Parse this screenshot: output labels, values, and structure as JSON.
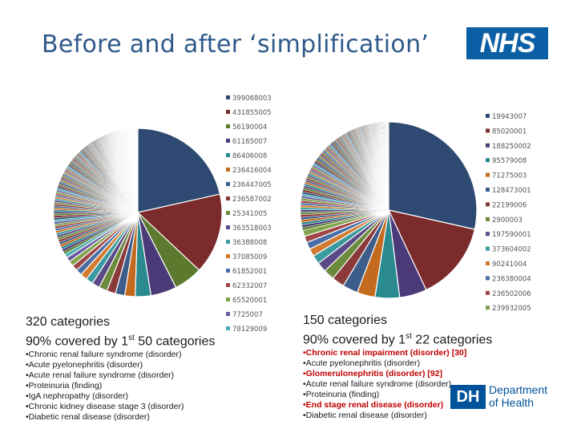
{
  "title": "Before and after ‘simplification’",
  "logos": {
    "nhs": "NHS",
    "dh_badge": "DH",
    "dh_line1": "Department",
    "dh_line2": "of Health"
  },
  "left": {
    "heading_line1": "320 categories",
    "heading_line2_pre": "90% covered by 1",
    "heading_line2_sup": "st",
    "heading_line2_post": " 50 categories",
    "items": [
      "•Chronic renal failure syndrome (disorder)",
      "•Acute pyelonephritis (disorder)",
      "•Acute renal failure syndrome (disorder)",
      "•Proteinuria (finding)",
      "•IgA nephropathy (disorder)",
      "•Chronic kidney disease stage 3 (disorder)",
      "•Diabetic renal disease (disorder)"
    ]
  },
  "right": {
    "heading_line1": "150 categories",
    "heading_line2_pre": "90% covered by 1",
    "heading_line2_sup": "st",
    "heading_line2_post": " 22 categories",
    "items": [
      {
        "text": "•Chronic renal impairment (disorder) [30]",
        "highlight": true
      },
      {
        "text": "•Acute pyelonephritis (disorder)",
        "highlight": false
      },
      {
        "text": "•Glomerulonephritis (disorder) [92]",
        "highlight": true
      },
      {
        "text": "•Acute renal failure syndrome (disorder)",
        "highlight": false
      },
      {
        "text": "•Proteinuria (finding)",
        "highlight": false
      },
      {
        "text": "•End stage renal disease (disorder)",
        "highlight": true
      },
      {
        "text": "•Diabetic renal disease (disorder)",
        "highlight": false
      }
    ]
  },
  "chart_data": [
    {
      "type": "pie",
      "title": "",
      "slice_count": 320,
      "major_slices": [
        {
          "label": "399068003",
          "value": 21.5,
          "color": "#2e4a72"
        },
        {
          "label": "431855005",
          "value": 15.5,
          "color": "#7b2b2b"
        },
        {
          "label": "56190004",
          "value": 5.5,
          "color": "#5c7a2e"
        },
        {
          "label": "61165007",
          "value": 5.0,
          "color": "#4a3a78"
        },
        {
          "label": "86406008",
          "value": 3.0,
          "color": "#2a8a8f"
        },
        {
          "label": "236416004",
          "value": 2.0,
          "color": "#c46a1f"
        },
        {
          "label": "236447005",
          "value": 1.8,
          "color": "#3d5d8a"
        },
        {
          "label": "236587002",
          "value": 1.7,
          "color": "#8a3a3a"
        },
        {
          "label": "25341005",
          "value": 1.6,
          "color": "#6c8a3c"
        },
        {
          "label": "363518003",
          "value": 1.5,
          "color": "#5a4a86"
        },
        {
          "label": "36388008",
          "value": 1.4,
          "color": "#3a9aa0"
        },
        {
          "label": "37085009",
          "value": 1.3,
          "color": "#d27a2e"
        },
        {
          "label": "61852001",
          "value": 1.2,
          "color": "#4a6fa5"
        },
        {
          "label": "62332007",
          "value": 1.1,
          "color": "#a04545"
        },
        {
          "label": "65520001",
          "value": 1.0,
          "color": "#7fa24a"
        },
        {
          "label": "7725007",
          "value": 0.9,
          "color": "#6a5aa0"
        },
        {
          "label": "78129009",
          "value": 0.8,
          "color": "#4fb0b5"
        }
      ]
    },
    {
      "type": "pie",
      "title": "",
      "slice_count": 150,
      "major_slices": [
        {
          "label": "19943007",
          "value": 28.5,
          "color": "#2e4a72"
        },
        {
          "label": "85020001",
          "value": 14.5,
          "color": "#7b2b2b"
        },
        {
          "label": "188250002",
          "value": 5.0,
          "color": "#4a3a78"
        },
        {
          "label": "95579008",
          "value": 4.5,
          "color": "#2a8a8f"
        },
        {
          "label": "71275003",
          "value": 3.3,
          "color": "#c46a1f"
        },
        {
          "label": "128473001",
          "value": 2.8,
          "color": "#3d5d8a"
        },
        {
          "label": "22199006",
          "value": 2.3,
          "color": "#8a3a3a"
        },
        {
          "label": "2900003",
          "value": 2.0,
          "color": "#6c8a3c"
        },
        {
          "label": "197590001",
          "value": 1.8,
          "color": "#5a4a86"
        },
        {
          "label": "373604002",
          "value": 1.6,
          "color": "#3a9aa0"
        },
        {
          "label": "90241004",
          "value": 1.4,
          "color": "#d27a2e"
        },
        {
          "label": "236380004",
          "value": 1.3,
          "color": "#4a6fa5"
        },
        {
          "label": "236502006",
          "value": 1.2,
          "color": "#a04545"
        },
        {
          "label": "239932005",
          "value": 1.1,
          "color": "#7fa24a"
        }
      ]
    }
  ],
  "legend_colors": [
    "#2e4a72",
    "#7b2b2b",
    "#5c7a2e",
    "#4a3a78",
    "#2a8a8f",
    "#c46a1f",
    "#3d5d8a",
    "#8a3a3a",
    "#6c8a3c",
    "#5a4a86",
    "#3a9aa0",
    "#d27a2e",
    "#4a6fa5",
    "#a04545",
    "#7fa24a",
    "#6a5aa0",
    "#4fb0b5"
  ]
}
